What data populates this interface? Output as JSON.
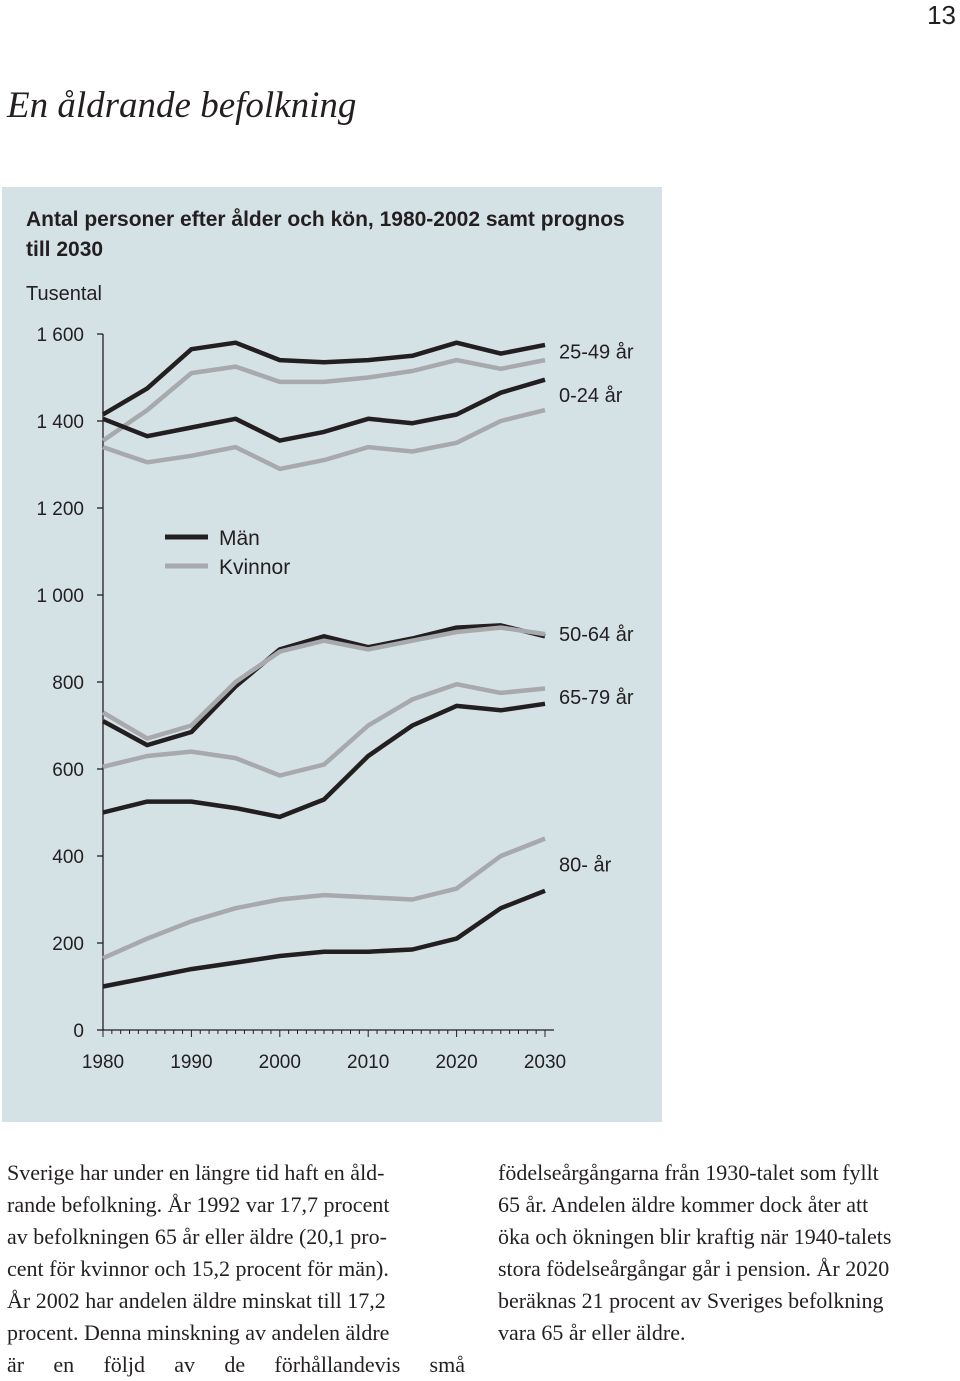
{
  "page_number": "13",
  "page_title": "En åldrande befolkning",
  "chart_panel": {
    "title": "Antal personer efter ålder och kön, 1980-2002 samt prognos till 2030",
    "unit": "Tusental"
  },
  "colors": {
    "panel_background": "#d4e2e6",
    "men_line": "#231f20",
    "women_line": "#a7a9ac",
    "text": "#231f20"
  },
  "chart_data": {
    "type": "line",
    "title": "Antal personer efter ålder och kön, 1980-2002 samt prognos till 2030",
    "ylabel": "Tusental",
    "ylim": [
      0,
      1600
    ],
    "xlim": [
      1979,
      2032
    ],
    "y_ticks": [
      0,
      200,
      400,
      600,
      800,
      1000,
      1200,
      1400,
      1600
    ],
    "y_tick_labels": [
      "0",
      "200",
      "400",
      "600",
      "800",
      "1 000",
      "1 200",
      "1 400",
      "1 600"
    ],
    "x_ticks": [
      1980,
      1990,
      2000,
      2010,
      2020,
      2030
    ],
    "x_tick_labels": [
      "1980",
      "1990",
      "2000",
      "2010",
      "2020",
      "2030"
    ],
    "grid": false,
    "legend": {
      "placement": "inside, upper-left",
      "entries": [
        {
          "label": "Män",
          "color": "#231f20"
        },
        {
          "label": "Kvinnor",
          "color": "#a7a9ac"
        }
      ]
    },
    "group_labels": [
      {
        "text": "25-49 år",
        "y": 1560
      },
      {
        "text": "0-24 år",
        "y": 1460
      },
      {
        "text": "50-64 år",
        "y": 910
      },
      {
        "text": "65-79 år",
        "y": 765
      },
      {
        "text": "80- år",
        "y": 380
      }
    ],
    "x": [
      1980,
      1985,
      1990,
      1995,
      2000,
      2005,
      2010,
      2015,
      2020,
      2025,
      2030
    ],
    "series": [
      {
        "group": "25-49 år",
        "sex": "Män",
        "values": [
          1415,
          1475,
          1565,
          1580,
          1540,
          1535,
          1540,
          1550,
          1580,
          1555,
          1575
        ]
      },
      {
        "group": "25-49 år",
        "sex": "Kvinnor",
        "values": [
          1355,
          1425,
          1510,
          1525,
          1490,
          1490,
          1500,
          1515,
          1540,
          1520,
          1540
        ]
      },
      {
        "group": "0-24 år",
        "sex": "Män",
        "values": [
          1405,
          1365,
          1385,
          1405,
          1355,
          1375,
          1405,
          1395,
          1415,
          1465,
          1495
        ]
      },
      {
        "group": "0-24 år",
        "sex": "Kvinnor",
        "values": [
          1340,
          1305,
          1320,
          1340,
          1290,
          1310,
          1340,
          1330,
          1350,
          1400,
          1425
        ]
      },
      {
        "group": "50-64 år",
        "sex": "Män",
        "values": [
          500,
          525,
          525,
          510,
          490,
          530,
          630,
          700,
          745,
          735,
          750
        ]
      },
      {
        "group": "50-64 år",
        "sex": "Kvinnor",
        "values": [
          605,
          630,
          640,
          625,
          585,
          610,
          700,
          760,
          795,
          775,
          785
        ]
      },
      {
        "group": "65-79 år",
        "sex": "Män",
        "values": [
          710,
          655,
          685,
          790,
          875,
          905,
          880,
          900,
          925,
          930,
          905
        ]
      },
      {
        "group": "65-79 år",
        "sex": "Kvinnor",
        "values": [
          730,
          670,
          700,
          800,
          870,
          895,
          875,
          895,
          915,
          925,
          910
        ]
      },
      {
        "group": "80- år",
        "sex": "Män",
        "values": [
          100,
          120,
          140,
          155,
          170,
          180,
          180,
          185,
          210,
          280,
          320
        ]
      },
      {
        "group": "80- år",
        "sex": "Kvinnor",
        "values": [
          165,
          210,
          250,
          280,
          300,
          310,
          305,
          300,
          325,
          400,
          440
        ]
      }
    ]
  },
  "body_text": {
    "col1": [
      "Sverige har under en längre tid haft en åld-",
      "rande befolkning. År 1992 var 17,7 procent",
      "av befolkningen 65 år eller äldre (20,1 pro-",
      "cent för kvinnor och 15,2 procent för män).",
      "År 2002 har andelen äldre minskat till 17,2",
      "procent. Denna minskning av andelen äldre",
      "är en följd av de förhållandevis små"
    ],
    "col2": [
      "födelseårgångarna från 1930-talet som fyllt",
      "65 år. Andelen äldre kommer dock åter att",
      "öka och ökningen blir kraftig när 1940-talets",
      "stora födelseårgångar går i pension. År 2020",
      "beräknas 21 procent av Sveriges befolkning",
      "vara 65 år eller äldre."
    ]
  }
}
